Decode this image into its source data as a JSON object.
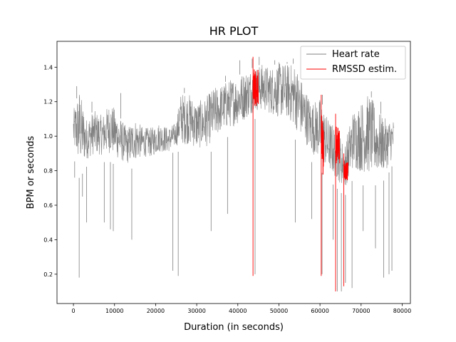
{
  "chart_data": {
    "type": "line",
    "title": "HR PLOT",
    "xlabel": "Duration (in seconds)",
    "ylabel": "BPM or seconds",
    "xlim": [
      -4000,
      82000
    ],
    "ylim": [
      0.03,
      1.55
    ],
    "xticks": [
      {
        "value": 0,
        "label": "0"
      },
      {
        "value": 10000,
        "label": "10000"
      },
      {
        "value": 20000,
        "label": "20000"
      },
      {
        "value": 30000,
        "label": "30000"
      },
      {
        "value": 40000,
        "label": "40000"
      },
      {
        "value": 50000,
        "label": "50000"
      },
      {
        "value": 60000,
        "label": "60000"
      },
      {
        "value": 70000,
        "label": "70000"
      },
      {
        "value": 80000,
        "label": "80000"
      }
    ],
    "yticks": [
      {
        "value": 0.2,
        "label": "0.2"
      },
      {
        "value": 0.4,
        "label": "0.4"
      },
      {
        "value": 0.6,
        "label": "0.6"
      },
      {
        "value": 0.8,
        "label": "0.8"
      },
      {
        "value": 1.0,
        "label": "1.0"
      },
      {
        "value": 1.2,
        "label": "1.2"
      },
      {
        "value": 1.4,
        "label": "1.4"
      }
    ],
    "grid": false,
    "legend_position": "top-right",
    "series": [
      {
        "name": "Heart rate",
        "color": "#808080",
        "x": [
          0,
          1500,
          3000,
          5000,
          7000,
          9000,
          11000,
          13000,
          15000,
          17000,
          19000,
          21000,
          23000,
          25000,
          26000,
          28000,
          30000,
          32000,
          34000,
          36000,
          38000,
          40000,
          42000,
          44000,
          46000,
          48000,
          50000,
          52000,
          54000,
          56000,
          58000,
          60000,
          62000,
          64000,
          66000,
          68000,
          70000,
          72000,
          74000,
          76000,
          78000
        ],
        "upper": [
          1.15,
          1.28,
          1.1,
          1.15,
          1.12,
          1.2,
          1.12,
          1.05,
          1.1,
          1.05,
          1.05,
          1.08,
          1.05,
          1.08,
          1.25,
          1.25,
          1.2,
          1.22,
          1.28,
          1.3,
          1.33,
          1.35,
          1.38,
          1.4,
          1.42,
          1.4,
          1.43,
          1.42,
          1.42,
          1.3,
          1.2,
          1.22,
          1.1,
          1.05,
          0.95,
          1.15,
          1.2,
          1.25,
          1.15,
          1.1,
          1.1
        ],
        "lower": [
          0.88,
          0.75,
          0.82,
          0.85,
          0.85,
          0.85,
          0.82,
          0.8,
          0.82,
          0.85,
          0.85,
          0.88,
          0.88,
          0.92,
          0.9,
          0.9,
          0.88,
          0.88,
          0.92,
          0.98,
          1.0,
          1.02,
          1.05,
          1.1,
          1.1,
          1.08,
          1.05,
          1.05,
          0.98,
          0.92,
          0.85,
          0.8,
          0.75,
          0.7,
          0.65,
          0.75,
          0.72,
          0.7,
          0.72,
          0.75,
          0.85
        ],
        "spikes": [
          {
            "x": 300,
            "y": 0.76
          },
          {
            "x": 1400,
            "y": 0.18
          },
          {
            "x": 2200,
            "y": 0.65
          },
          {
            "x": 3200,
            "y": 0.5
          },
          {
            "x": 7500,
            "y": 0.5
          },
          {
            "x": 9000,
            "y": 0.46
          },
          {
            "x": 9700,
            "y": 0.45
          },
          {
            "x": 14200,
            "y": 0.4
          },
          {
            "x": 24200,
            "y": 0.22
          },
          {
            "x": 25500,
            "y": 0.19
          },
          {
            "x": 33500,
            "y": 0.45
          },
          {
            "x": 37500,
            "y": 0.55
          },
          {
            "x": 44200,
            "y": 0.2
          },
          {
            "x": 54000,
            "y": 0.5
          },
          {
            "x": 58000,
            "y": 0.52
          },
          {
            "x": 60500,
            "y": 0.2
          },
          {
            "x": 63200,
            "y": 0.4
          },
          {
            "x": 64200,
            "y": 0.1
          },
          {
            "x": 65200,
            "y": 0.1
          },
          {
            "x": 66200,
            "y": 0.15
          },
          {
            "x": 67800,
            "y": 0.12
          },
          {
            "x": 70500,
            "y": 0.45
          },
          {
            "x": 73500,
            "y": 0.35
          },
          {
            "x": 75500,
            "y": 0.18
          },
          {
            "x": 76800,
            "y": 0.2
          },
          {
            "x": 77500,
            "y": 0.22
          }
        ],
        "peaks": [
          {
            "x": 800,
            "y": 1.29
          },
          {
            "x": 4500,
            "y": 1.2
          },
          {
            "x": 11500,
            "y": 1.25
          },
          {
            "x": 27000,
            "y": 1.28
          },
          {
            "x": 37000,
            "y": 1.35
          },
          {
            "x": 40500,
            "y": 1.44
          },
          {
            "x": 43500,
            "y": 1.45
          },
          {
            "x": 45200,
            "y": 1.46
          },
          {
            "x": 49000,
            "y": 1.44
          },
          {
            "x": 52000,
            "y": 1.43
          },
          {
            "x": 53500,
            "y": 1.45
          },
          {
            "x": 60600,
            "y": 1.24
          },
          {
            "x": 72500,
            "y": 1.26
          },
          {
            "x": 74800,
            "y": 1.2
          }
        ]
      },
      {
        "name": "RMSSD estim.",
        "color": "#ff0000",
        "segments": [
          {
            "x0": 43700,
            "x1": 45000,
            "ymin": 0.19,
            "ymax": 1.46,
            "ymid": 1.28
          },
          {
            "x0": 60300,
            "x1": 60900,
            "ymin": 0.19,
            "ymax": 1.24,
            "ymid": 0.95
          },
          {
            "x0": 63800,
            "x1": 64800,
            "ymin": 0.1,
            "ymax": 1.13,
            "ymid": 0.95
          },
          {
            "x0": 65800,
            "x1": 66800,
            "ymin": 0.13,
            "ymax": 0.9,
            "ymid": 0.8
          }
        ]
      }
    ]
  }
}
